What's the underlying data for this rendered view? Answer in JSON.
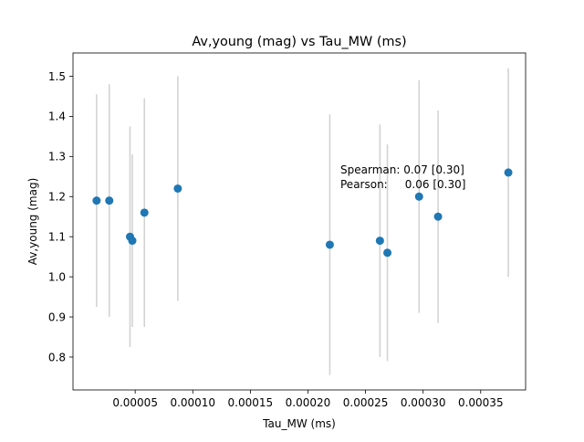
{
  "chart_data": {
    "type": "scatter",
    "title": "Av,young (mag) vs Tau_MW (ms)",
    "xlabel": "Tau_MW (ms)",
    "ylabel": "Av,young (mag)",
    "xlim": [
      -4e-06,
      0.000389
    ],
    "ylim": [
      0.718,
      1.558
    ],
    "xticks": [
      5e-05,
      0.0001,
      0.00015,
      0.0002,
      0.00025,
      0.0003,
      0.00035
    ],
    "xtick_labels": [
      "0.00005",
      "0.00010",
      "0.00015",
      "0.00020",
      "0.00025",
      "0.00030",
      "0.00035"
    ],
    "yticks": [
      0.8,
      0.9,
      1.0,
      1.1,
      1.2,
      1.3,
      1.4,
      1.5
    ],
    "ytick_labels": [
      "0.8",
      "0.9",
      "1.0",
      "1.1",
      "1.2",
      "1.3",
      "1.4",
      "1.5"
    ],
    "grid": false,
    "points": [
      {
        "x": 1.65e-05,
        "y": 1.19,
        "err_low": 0.925,
        "err_high": 1.455
      },
      {
        "x": 2.75e-05,
        "y": 1.19,
        "err_low": 0.9,
        "err_high": 1.48
      },
      {
        "x": 4.55e-05,
        "y": 1.1,
        "err_low": 0.825,
        "err_high": 1.375
      },
      {
        "x": 4.75e-05,
        "y": 1.09,
        "err_low": 0.875,
        "err_high": 1.305
      },
      {
        "x": 5.8e-05,
        "y": 1.16,
        "err_low": 0.875,
        "err_high": 1.445
      },
      {
        "x": 8.7e-05,
        "y": 1.22,
        "err_low": 0.94,
        "err_high": 1.5
      },
      {
        "x": 0.000219,
        "y": 1.08,
        "err_low": 0.755,
        "err_high": 1.405
      },
      {
        "x": 0.0002625,
        "y": 1.09,
        "err_low": 0.8,
        "err_high": 1.38
      },
      {
        "x": 0.000269,
        "y": 1.06,
        "err_low": 0.79,
        "err_high": 1.33
      },
      {
        "x": 0.0002965,
        "y": 1.2,
        "err_low": 0.91,
        "err_high": 1.49
      },
      {
        "x": 0.000313,
        "y": 1.15,
        "err_low": 0.885,
        "err_high": 1.415
      },
      {
        "x": 0.000374,
        "y": 1.26,
        "err_low": 1.0,
        "err_high": 1.52
      }
    ],
    "annotation": {
      "line1": "Spearman: 0.07 [0.30]",
      "line2": "Pearson:     0.06 [0.30]"
    },
    "colors": {
      "point": "#1f77b4",
      "errorbar": "#d3d3d3"
    }
  }
}
